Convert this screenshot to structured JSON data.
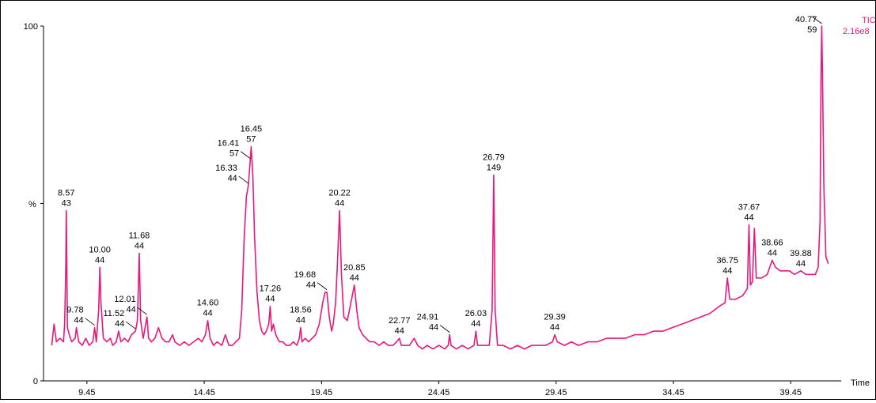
{
  "chart_data": {
    "type": "line",
    "title": "",
    "xlabel": "Time",
    "ylabel": "%",
    "xlim": [
      7.6,
      41.6
    ],
    "ylim": [
      0,
      100
    ],
    "x_ticks": [
      "9.45",
      "14.45",
      "19.45",
      "24.45",
      "29.45",
      "34.45",
      "39.45"
    ],
    "x_tick_values": [
      9.45,
      14.45,
      19.45,
      24.45,
      29.45,
      34.45,
      39.45
    ],
    "y_ticks": [
      "0",
      "100"
    ],
    "y_tick_values": [
      0,
      100
    ],
    "y_mid_label": "%",
    "y_mid_value": 50,
    "trace_label": "TIC",
    "intensity_label": "2.16e8",
    "colors": {
      "trace": "#e8187e",
      "text": "#000000"
    },
    "series": [
      {
        "values": [
          [
            7.95,
            10
          ],
          [
            8.05,
            16
          ],
          [
            8.15,
            11
          ],
          [
            8.3,
            12
          ],
          [
            8.45,
            11
          ],
          [
            8.5,
            16
          ],
          [
            8.55,
            33
          ],
          [
            8.57,
            48
          ],
          [
            8.62,
            15
          ],
          [
            8.7,
            13
          ],
          [
            8.8,
            11
          ],
          [
            8.95,
            12
          ],
          [
            9.0,
            15
          ],
          [
            9.1,
            11
          ],
          [
            9.25,
            10
          ],
          [
            9.4,
            12
          ],
          [
            9.55,
            10
          ],
          [
            9.7,
            11
          ],
          [
            9.78,
            15
          ],
          [
            9.85,
            11
          ],
          [
            9.95,
            20
          ],
          [
            10.0,
            32
          ],
          [
            10.05,
            22
          ],
          [
            10.15,
            12
          ],
          [
            10.3,
            11
          ],
          [
            10.45,
            12
          ],
          [
            10.55,
            10
          ],
          [
            10.7,
            11
          ],
          [
            10.8,
            14
          ],
          [
            10.9,
            11
          ],
          [
            11.05,
            12
          ],
          [
            11.2,
            11
          ],
          [
            11.35,
            13
          ],
          [
            11.52,
            14
          ],
          [
            11.6,
            17
          ],
          [
            11.68,
            36
          ],
          [
            11.74,
            17
          ],
          [
            11.85,
            12
          ],
          [
            12.01,
            18
          ],
          [
            12.08,
            12
          ],
          [
            12.2,
            11
          ],
          [
            12.35,
            12
          ],
          [
            12.5,
            15
          ],
          [
            12.65,
            12
          ],
          [
            12.8,
            11
          ],
          [
            12.95,
            11
          ],
          [
            13.1,
            13
          ],
          [
            13.2,
            11
          ],
          [
            13.4,
            10
          ],
          [
            13.6,
            11
          ],
          [
            13.8,
            10
          ],
          [
            14.0,
            11
          ],
          [
            14.2,
            12
          ],
          [
            14.35,
            11
          ],
          [
            14.5,
            13
          ],
          [
            14.6,
            17
          ],
          [
            14.7,
            12
          ],
          [
            14.85,
            10
          ],
          [
            15.0,
            11
          ],
          [
            15.2,
            10
          ],
          [
            15.35,
            13
          ],
          [
            15.5,
            10
          ],
          [
            15.65,
            10
          ],
          [
            15.8,
            11
          ],
          [
            15.95,
            12
          ],
          [
            16.05,
            20
          ],
          [
            16.15,
            40
          ],
          [
            16.25,
            52
          ],
          [
            16.33,
            55
          ],
          [
            16.41,
            62
          ],
          [
            16.45,
            66
          ],
          [
            16.52,
            58
          ],
          [
            16.6,
            40
          ],
          [
            16.7,
            25
          ],
          [
            16.8,
            17
          ],
          [
            16.9,
            14
          ],
          [
            17.0,
            13
          ],
          [
            17.1,
            14
          ],
          [
            17.2,
            16
          ],
          [
            17.26,
            21
          ],
          [
            17.32,
            14
          ],
          [
            17.4,
            16
          ],
          [
            17.5,
            13
          ],
          [
            17.65,
            11
          ],
          [
            17.8,
            11
          ],
          [
            17.95,
            10
          ],
          [
            18.1,
            10
          ],
          [
            18.25,
            11
          ],
          [
            18.4,
            10
          ],
          [
            18.5,
            12
          ],
          [
            18.56,
            15
          ],
          [
            18.62,
            11
          ],
          [
            18.75,
            12
          ],
          [
            18.9,
            11
          ],
          [
            19.05,
            12
          ],
          [
            19.2,
            13
          ],
          [
            19.35,
            16
          ],
          [
            19.5,
            22
          ],
          [
            19.6,
            25
          ],
          [
            19.68,
            25
          ],
          [
            19.78,
            18
          ],
          [
            19.88,
            14
          ],
          [
            19.95,
            16
          ],
          [
            20.05,
            22
          ],
          [
            20.12,
            32
          ],
          [
            20.22,
            48
          ],
          [
            20.3,
            30
          ],
          [
            20.4,
            18
          ],
          [
            20.55,
            17
          ],
          [
            20.7,
            22
          ],
          [
            20.85,
            27
          ],
          [
            20.95,
            20
          ],
          [
            21.05,
            15
          ],
          [
            21.2,
            13
          ],
          [
            21.35,
            12
          ],
          [
            21.5,
            11
          ],
          [
            21.7,
            11
          ],
          [
            21.9,
            10
          ],
          [
            22.1,
            11
          ],
          [
            22.3,
            10
          ],
          [
            22.5,
            10
          ],
          [
            22.65,
            11
          ],
          [
            22.77,
            12
          ],
          [
            22.85,
            10
          ],
          [
            23.0,
            10
          ],
          [
            23.2,
            10
          ],
          [
            23.4,
            12
          ],
          [
            23.55,
            10
          ],
          [
            23.75,
            9
          ],
          [
            23.95,
            10
          ],
          [
            24.2,
            9
          ],
          [
            24.45,
            10
          ],
          [
            24.7,
            9
          ],
          [
            24.85,
            10
          ],
          [
            24.91,
            13
          ],
          [
            24.97,
            10
          ],
          [
            25.2,
            9
          ],
          [
            25.45,
            10
          ],
          [
            25.7,
            9
          ],
          [
            25.95,
            10
          ],
          [
            26.03,
            14
          ],
          [
            26.1,
            10
          ],
          [
            26.35,
            10
          ],
          [
            26.6,
            10
          ],
          [
            26.72,
            20
          ],
          [
            26.79,
            58
          ],
          [
            26.85,
            20
          ],
          [
            26.95,
            10
          ],
          [
            27.2,
            10
          ],
          [
            27.5,
            9
          ],
          [
            27.8,
            10
          ],
          [
            28.1,
            9
          ],
          [
            28.4,
            10
          ],
          [
            28.7,
            10
          ],
          [
            29.0,
            10
          ],
          [
            29.3,
            11
          ],
          [
            29.39,
            13
          ],
          [
            29.5,
            11
          ],
          [
            29.8,
            10
          ],
          [
            30.1,
            11
          ],
          [
            30.4,
            10
          ],
          [
            30.8,
            11
          ],
          [
            31.2,
            11
          ],
          [
            31.6,
            12
          ],
          [
            32.0,
            12
          ],
          [
            32.4,
            12
          ],
          [
            32.8,
            13
          ],
          [
            33.2,
            13
          ],
          [
            33.6,
            14
          ],
          [
            34.0,
            14
          ],
          [
            34.4,
            15
          ],
          [
            34.8,
            16
          ],
          [
            35.2,
            17
          ],
          [
            35.6,
            18
          ],
          [
            36.0,
            19
          ],
          [
            36.4,
            21
          ],
          [
            36.65,
            22
          ],
          [
            36.75,
            29
          ],
          [
            36.85,
            23
          ],
          [
            37.1,
            23
          ],
          [
            37.4,
            24
          ],
          [
            37.6,
            26
          ],
          [
            37.67,
            44
          ],
          [
            37.73,
            27
          ],
          [
            37.82,
            28
          ],
          [
            37.9,
            43
          ],
          [
            37.98,
            29
          ],
          [
            38.2,
            29
          ],
          [
            38.45,
            30
          ],
          [
            38.66,
            34
          ],
          [
            38.8,
            32
          ],
          [
            39.0,
            31
          ],
          [
            39.2,
            31
          ],
          [
            39.4,
            31
          ],
          [
            39.6,
            30
          ],
          [
            39.88,
            31
          ],
          [
            40.1,
            30
          ],
          [
            40.3,
            30
          ],
          [
            40.5,
            30
          ],
          [
            40.62,
            32
          ],
          [
            40.7,
            45
          ],
          [
            40.74,
            85
          ],
          [
            40.77,
            100
          ],
          [
            40.8,
            88
          ],
          [
            40.86,
            55
          ],
          [
            40.95,
            35
          ],
          [
            41.05,
            33
          ]
        ]
      }
    ],
    "peak_labels": [
      {
        "rt": "8.57",
        "mz": "43",
        "x": 8.57,
        "y": 48
      },
      {
        "rt": "9.78",
        "mz": "44",
        "x": 9.78,
        "y": 15
      },
      {
        "rt": "10.00",
        "mz": "44",
        "x": 10.0,
        "y": 32
      },
      {
        "rt": "11.52",
        "mz": "44",
        "x": 11.52,
        "y": 14
      },
      {
        "rt": "11.68",
        "mz": "44",
        "x": 11.68,
        "y": 36
      },
      {
        "rt": "12.01",
        "mz": "44",
        "x": 12.01,
        "y": 18
      },
      {
        "rt": "14.60",
        "mz": "44",
        "x": 14.6,
        "y": 17
      },
      {
        "rt": "16.33",
        "mz": "44",
        "x": 16.33,
        "y": 55
      },
      {
        "rt": "16.41",
        "mz": "57",
        "x": 16.41,
        "y": 62
      },
      {
        "rt": "16.45",
        "mz": "57",
        "x": 16.45,
        "y": 66
      },
      {
        "rt": "17.26",
        "mz": "44",
        "x": 17.26,
        "y": 21
      },
      {
        "rt": "18.56",
        "mz": "44",
        "x": 18.56,
        "y": 15
      },
      {
        "rt": "19.68",
        "mz": "44",
        "x": 19.68,
        "y": 25
      },
      {
        "rt": "20.22",
        "mz": "44",
        "x": 20.22,
        "y": 48
      },
      {
        "rt": "20.85",
        "mz": "44",
        "x": 20.85,
        "y": 27
      },
      {
        "rt": "22.77",
        "mz": "44",
        "x": 22.77,
        "y": 12
      },
      {
        "rt": "24.91",
        "mz": "44",
        "x": 24.91,
        "y": 13
      },
      {
        "rt": "26.03",
        "mz": "44",
        "x": 26.03,
        "y": 14
      },
      {
        "rt": "26.79",
        "mz": "149",
        "x": 26.79,
        "y": 58
      },
      {
        "rt": "29.39",
        "mz": "44",
        "x": 29.39,
        "y": 13
      },
      {
        "rt": "36.75",
        "mz": "44",
        "x": 36.75,
        "y": 29
      },
      {
        "rt": "37.67",
        "mz": "44",
        "x": 37.67,
        "y": 44
      },
      {
        "rt": "38.66",
        "mz": "44",
        "x": 38.66,
        "y": 34
      },
      {
        "rt": "39.88",
        "mz": "44",
        "x": 39.88,
        "y": 31
      },
      {
        "rt": "40.77",
        "mz": "59",
        "x": 40.77,
        "y": 100
      }
    ]
  }
}
